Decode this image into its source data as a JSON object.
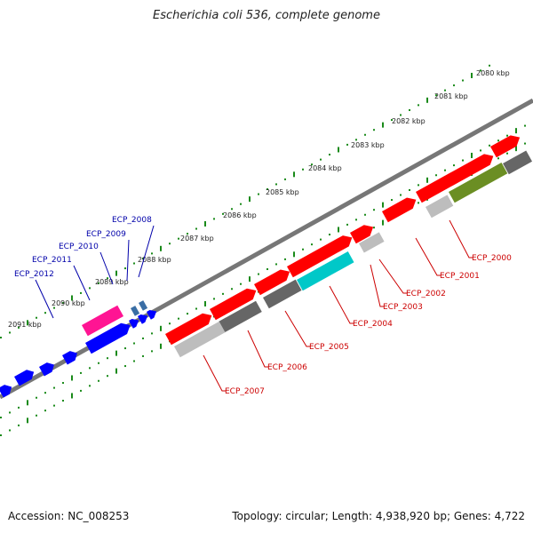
{
  "title": "Escherichia coli 536, complete genome",
  "footer": {
    "accession": "Accession: NC_008253",
    "summary": "Topology: circular; Length: 4,938,920 bp; Genes: 4,722"
  },
  "scale_labels": [
    "2080 kbp",
    "2081 kbp",
    "2082 kbp",
    "2083 kbp",
    "2084 kbp",
    "2085 kbp",
    "2086 kbp",
    "2087 kbp",
    "2088 kbp",
    "2089 kbp",
    "2090 kbp",
    "2091 kbp"
  ],
  "genes_red": [
    "ECP_2000",
    "ECP_2001",
    "ECP_2002",
    "ECP_2003",
    "ECP_2004",
    "ECP_2005",
    "ECP_2006",
    "ECP_2007"
  ],
  "genes_blue": [
    "ECP_2008",
    "ECP_2009",
    "ECP_2010",
    "ECP_2011",
    "ECP_2012"
  ],
  "colors": {
    "backbone": "#777777",
    "tick": "#1a8a1a",
    "gene_red": "#ff0000",
    "gene_blue": "#0000ff",
    "gene_magenta": "#ff1493",
    "gene_cyan": "#00c8c8",
    "gene_olive": "#6b8e23",
    "gene_gray_dark": "#666666",
    "gene_gray_light": "#bdbdbd",
    "label_red": "#cc0000",
    "label_blue": "#0000aa"
  }
}
